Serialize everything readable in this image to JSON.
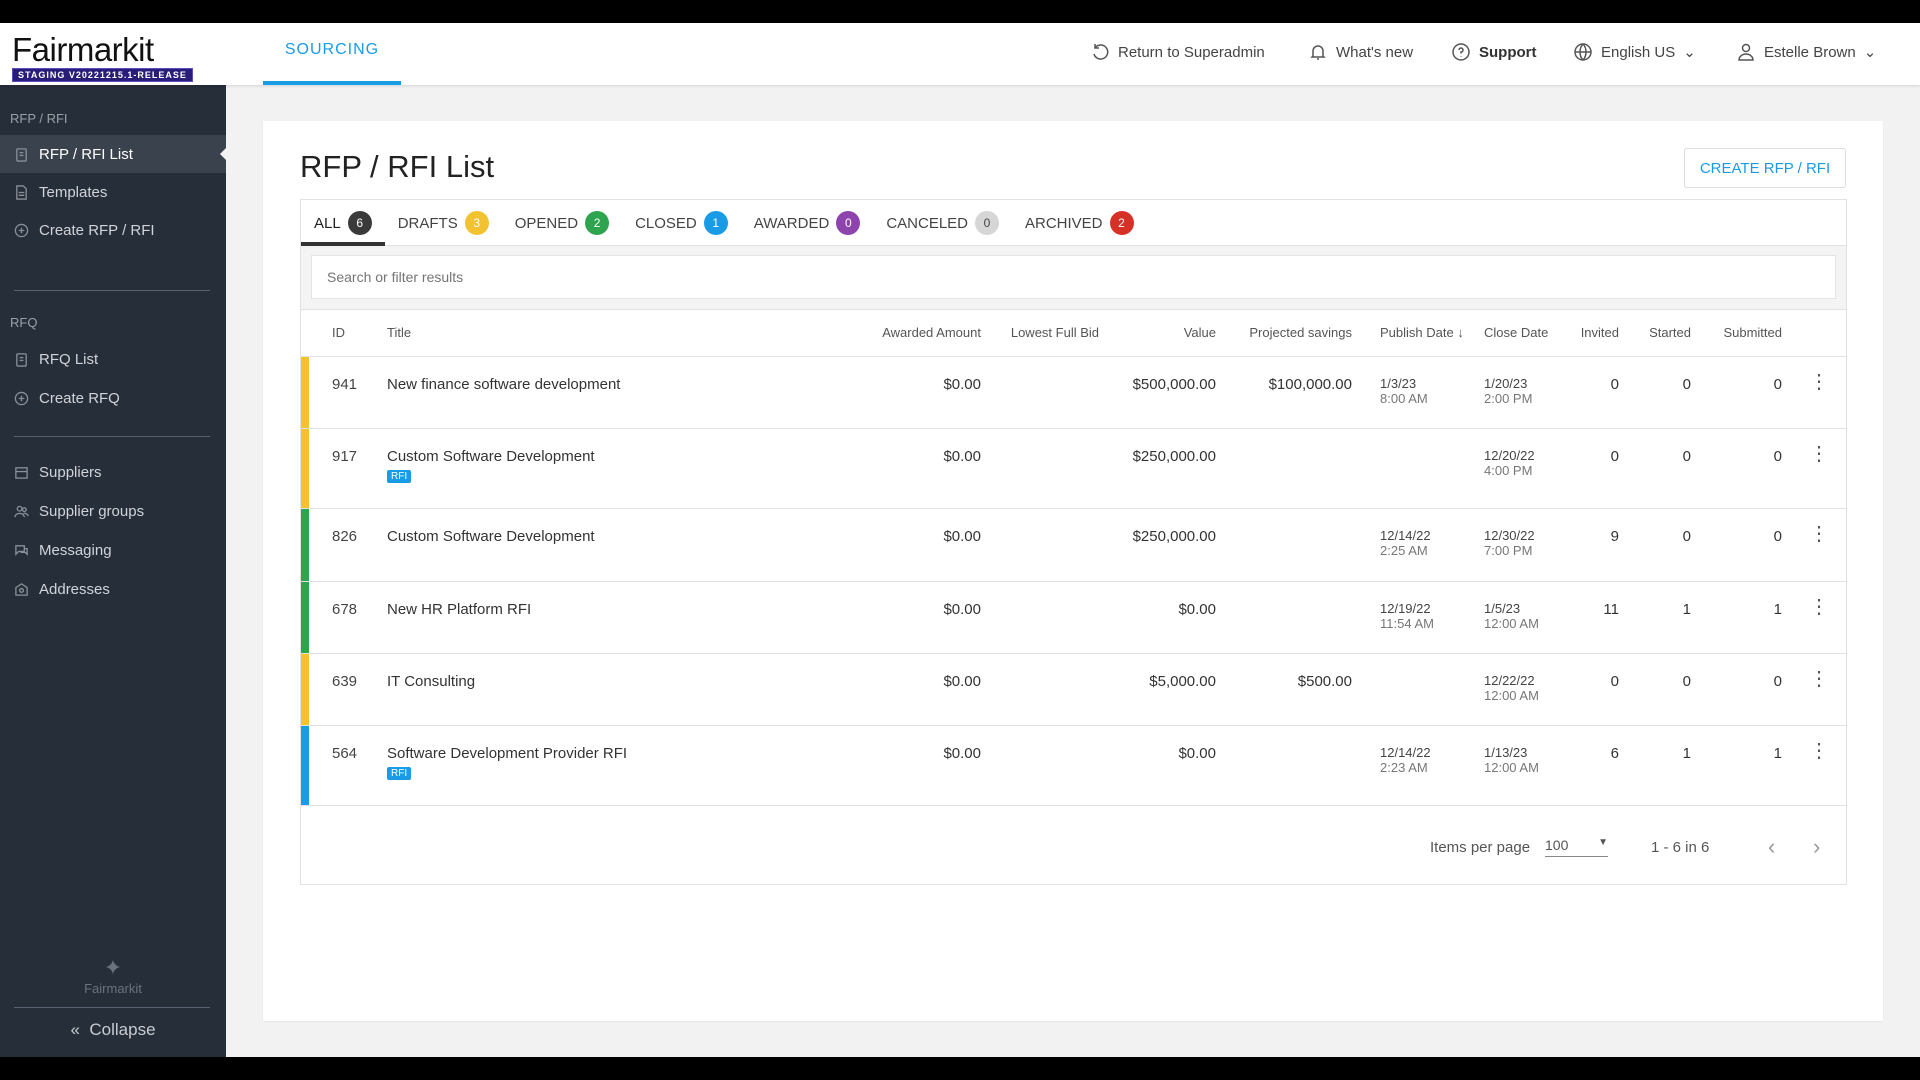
{
  "header": {
    "logo": "Fairmarkit",
    "env_badge": "STAGING V20221215.1-RELEASE",
    "nav_tab": "SOURCING",
    "return": "Return to Superadmin",
    "whats_new": "What's new",
    "support": "Support",
    "language": "English US",
    "user": "Estelle Brown"
  },
  "sidebar": {
    "section_rfp": "RFP / RFI",
    "rfp_list": "RFP / RFI List",
    "templates": "Templates",
    "create_rfp": "Create RFP / RFI",
    "section_rfq": "RFQ",
    "rfq_list": "RFQ List",
    "create_rfq": "Create RFQ",
    "suppliers": "Suppliers",
    "supplier_groups": "Supplier groups",
    "messaging": "Messaging",
    "addresses": "Addresses",
    "footer_logo": "Fairmarkit",
    "collapse": "Collapse"
  },
  "page": {
    "title": "RFP / RFI List",
    "create_button": "CREATE RFP / RFI",
    "search_placeholder": "Search or filter results"
  },
  "tabs": [
    {
      "label": "ALL",
      "count": "6",
      "color": "#3a3a3a"
    },
    {
      "label": "DRAFTS",
      "count": "3",
      "color": "#f2c230"
    },
    {
      "label": "OPENED",
      "count": "2",
      "color": "#2ea44f"
    },
    {
      "label": "CLOSED",
      "count": "1",
      "color": "#1a9be6"
    },
    {
      "label": "AWARDED",
      "count": "0",
      "color": "#8e44ad"
    },
    {
      "label": "CANCELED",
      "count": "0",
      "color": "#d6d6d6"
    },
    {
      "label": "ARCHIVED",
      "count": "2",
      "color": "#d63027"
    }
  ],
  "columns": {
    "id": "ID",
    "title": "Title",
    "awarded": "Awarded Amount",
    "lowest": "Lowest Full Bid",
    "value": "Value",
    "savings": "Projected savings",
    "publish": "Publish Date",
    "close": "Close Date",
    "invited": "Invited",
    "started": "Started",
    "submitted": "Submitted"
  },
  "rows": [
    {
      "status_color": "#f2c230",
      "id": "941",
      "title": "New finance software development",
      "tag": "",
      "awarded": "$0.00",
      "lowest": "",
      "value": "$500,000.00",
      "savings": "$100,000.00",
      "publish_date": "1/3/23",
      "publish_time": "8:00 AM",
      "close_date": "1/20/23",
      "close_time": "2:00 PM",
      "invited": "0",
      "started": "0",
      "submitted": "0"
    },
    {
      "status_color": "#f2c230",
      "id": "917",
      "title": "Custom Software Development",
      "tag": "RFI",
      "awarded": "$0.00",
      "lowest": "",
      "value": "$250,000.00",
      "savings": "",
      "publish_date": "",
      "publish_time": "",
      "close_date": "12/20/22",
      "close_time": "4:00 PM",
      "invited": "0",
      "started": "0",
      "submitted": "0"
    },
    {
      "status_color": "#2ea44f",
      "id": "826",
      "title": "Custom Software Development",
      "tag": "",
      "awarded": "$0.00",
      "lowest": "",
      "value": "$250,000.00",
      "savings": "",
      "publish_date": "12/14/22",
      "publish_time": "2:25 AM",
      "close_date": "12/30/22",
      "close_time": "7:00 PM",
      "invited": "9",
      "started": "0",
      "submitted": "0"
    },
    {
      "status_color": "#2ea44f",
      "id": "678",
      "title": "New HR Platform RFI",
      "tag": "",
      "awarded": "$0.00",
      "lowest": "",
      "value": "$0.00",
      "savings": "",
      "publish_date": "12/19/22",
      "publish_time": "11:54 AM",
      "close_date": "1/5/23",
      "close_time": "12:00 AM",
      "invited": "11",
      "started": "1",
      "submitted": "1"
    },
    {
      "status_color": "#f2c230",
      "id": "639",
      "title": "IT Consulting",
      "tag": "",
      "awarded": "$0.00",
      "lowest": "",
      "value": "$5,000.00",
      "savings": "$500.00",
      "publish_date": "",
      "publish_time": "",
      "close_date": "12/22/22",
      "close_time": "12:00 AM",
      "invited": "0",
      "started": "0",
      "submitted": "0"
    },
    {
      "status_color": "#1a9be6",
      "id": "564",
      "title": "Software Development Provider RFI",
      "tag": "RFI",
      "awarded": "$0.00",
      "lowest": "",
      "value": "$0.00",
      "savings": "",
      "publish_date": "12/14/22",
      "publish_time": "2:23 AM",
      "close_date": "1/13/23",
      "close_time": "12:00 AM",
      "invited": "6",
      "started": "1",
      "submitted": "1"
    }
  ],
  "footer": {
    "items_per_page_label": "Items per page",
    "items_per_page": "100",
    "range": "1 - 6 in 6"
  }
}
